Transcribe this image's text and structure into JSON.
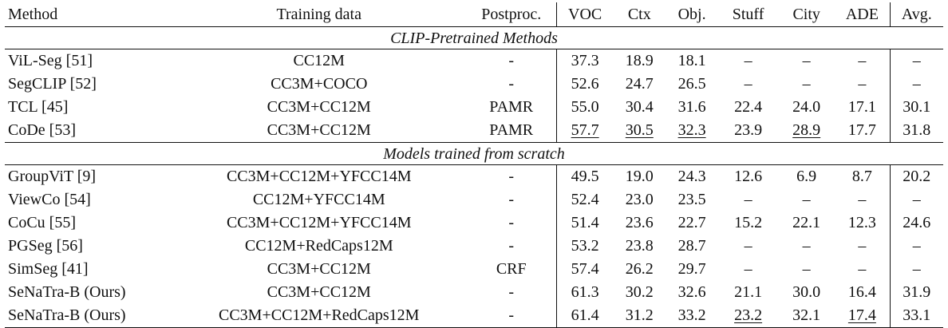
{
  "header": {
    "method": "Method",
    "training": "Training data",
    "postproc": "Postproc.",
    "voc": "VOC",
    "ctx": "Ctx",
    "obj": "Obj.",
    "stuff": "Stuff",
    "city": "City",
    "ade": "ADE",
    "avg": "Avg."
  },
  "sections": [
    {
      "title": "CLIP-Pretrained Methods",
      "rows": [
        {
          "method": "ViL-Seg [51]",
          "training": "CC12M",
          "postproc": "-",
          "voc": "37.3",
          "ctx": "18.9",
          "obj": "18.1",
          "stuff": "–",
          "city": "–",
          "ade": "–",
          "avg": "–"
        },
        {
          "method": "SegCLIP [52]",
          "training": "CC3M+COCO",
          "postproc": "-",
          "voc": "52.6",
          "ctx": "24.7",
          "obj": "26.5",
          "stuff": "–",
          "city": "–",
          "ade": "–",
          "avg": "–"
        },
        {
          "method": "TCL [45]",
          "training": "CC3M+CC12M",
          "postproc": "PAMR",
          "voc": "55.0",
          "ctx": "30.4",
          "obj": "31.6",
          "stuff": "22.4",
          "city": "24.0",
          "ade": "17.1",
          "avg": "30.1"
        },
        {
          "method": "CoDe [53]",
          "training": "CC3M+CC12M",
          "postproc": "PAMR",
          "voc": "57.7",
          "ctx": "30.5",
          "obj": "32.3",
          "stuff": "23.9",
          "city": "28.9",
          "ade": "17.7",
          "avg": "31.8"
        }
      ]
    },
    {
      "title": "Models trained from scratch",
      "rows": [
        {
          "method": "GroupViT [9]",
          "training": "CC3M+CC12M+YFCC14M",
          "postproc": "-",
          "voc": "49.5",
          "ctx": "19.0",
          "obj": "24.3",
          "stuff": "12.6",
          "city": "6.9",
          "ade": "8.7",
          "avg": "20.2"
        },
        {
          "method": "ViewCo [54]",
          "training": "CC12M+YFCC14M",
          "postproc": "-",
          "voc": "52.4",
          "ctx": "23.0",
          "obj": "23.5",
          "stuff": "–",
          "city": "–",
          "ade": "–",
          "avg": "–"
        },
        {
          "method": "CoCu [55]",
          "training": "CC3M+CC12M+YFCC14M",
          "postproc": "-",
          "voc": "51.4",
          "ctx": "23.6",
          "obj": "22.7",
          "stuff": "15.2",
          "city": "22.1",
          "ade": "12.3",
          "avg": "24.6"
        },
        {
          "method": "PGSeg [56]",
          "training": "CC12M+RedCaps12M",
          "postproc": "-",
          "voc": "53.2",
          "ctx": "23.8",
          "obj": "28.7",
          "stuff": "–",
          "city": "–",
          "ade": "–",
          "avg": "–"
        },
        {
          "method": "SimSeg [41]",
          "training": "CC3M+CC12M",
          "postproc": "CRF",
          "voc": "57.4",
          "ctx": "26.2",
          "obj": "29.7",
          "stuff": "–",
          "city": "–",
          "ade": "–",
          "avg": "–"
        },
        {
          "method": "SeNaTra-B (Ours)",
          "training": "CC3M+CC12M",
          "postproc": "-",
          "voc": "61.3",
          "ctx": "30.2",
          "obj": "32.6",
          "stuff": "21.1",
          "city": "30.0",
          "ade": "16.4",
          "avg": "31.9"
        },
        {
          "method": "SeNaTra-B (Ours)",
          "training": "CC3M+CC12M+RedCaps12M",
          "postproc": "-",
          "voc": "61.4",
          "ctx": "31.2",
          "obj": "33.2",
          "stuff": "23.2",
          "city": "32.1",
          "ade": "17.4",
          "avg": "33.1"
        }
      ]
    }
  ]
}
